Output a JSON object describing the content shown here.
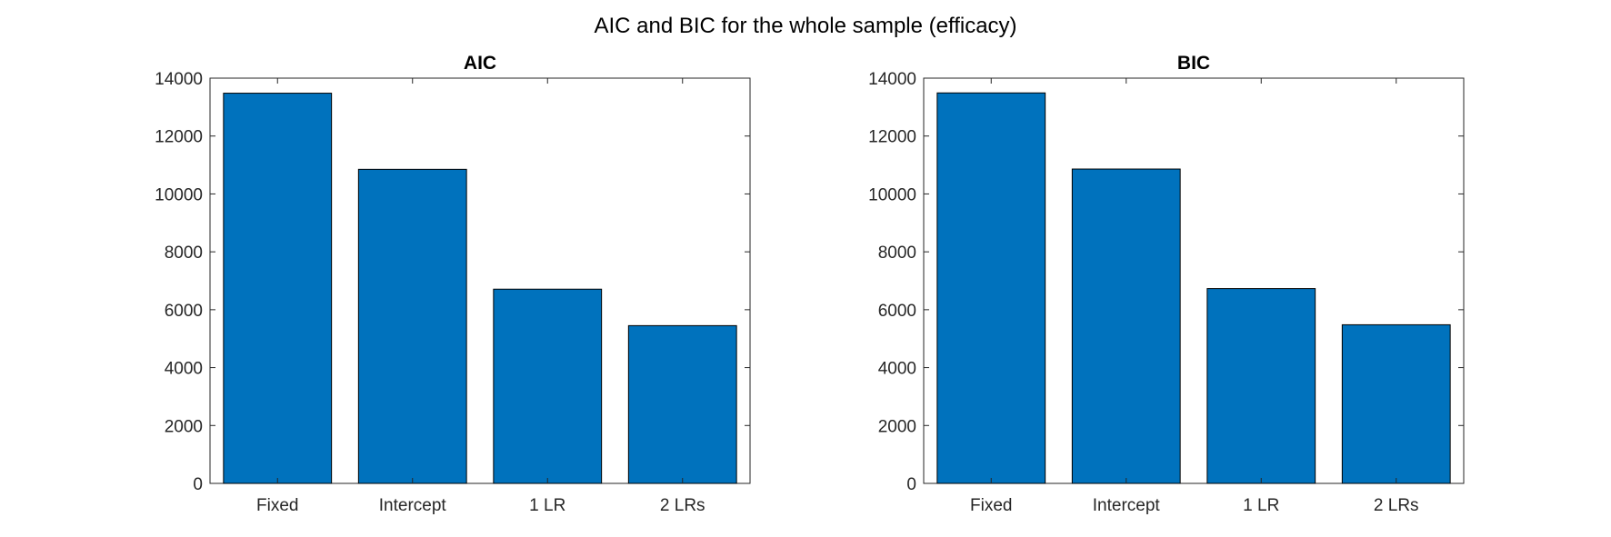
{
  "figure_title": "AIC and BIC for the whole sample (efficacy)",
  "chart_data": [
    {
      "type": "bar",
      "title": "AIC",
      "xlabel": "",
      "ylabel": "",
      "categories": [
        "Fixed",
        "Intercept",
        "1 LR",
        "2 LRs"
      ],
      "values": [
        13480,
        10850,
        6710,
        5450
      ],
      "ylim": [
        0,
        14000
      ],
      "yticks": [
        0,
        2000,
        4000,
        6000,
        8000,
        10000,
        12000,
        14000
      ],
      "bar_color": "#0072BD",
      "grid": false,
      "legend": "none"
    },
    {
      "type": "bar",
      "title": "BIC",
      "xlabel": "",
      "ylabel": "",
      "categories": [
        "Fixed",
        "Intercept",
        "1 LR",
        "2 LRs"
      ],
      "values": [
        13490,
        10860,
        6730,
        5480
      ],
      "ylim": [
        0,
        14000
      ],
      "yticks": [
        0,
        2000,
        4000,
        6000,
        8000,
        10000,
        12000,
        14000
      ],
      "bar_color": "#0072BD",
      "grid": false,
      "legend": "none"
    }
  ]
}
